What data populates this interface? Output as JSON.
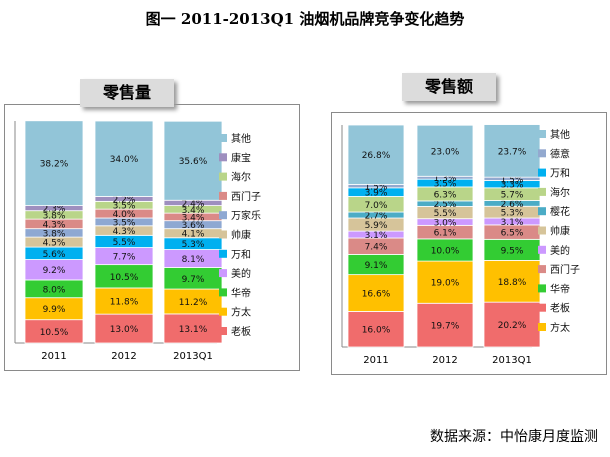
{
  "page_title": "图一  2011-2013Q1 油烟机品牌竞争变化趋势",
  "source": "数据来源：中怡康月度监测",
  "colors": {
    "其他": "#92C5D8",
    "康宝": "#9E8FBF",
    "海尔": "#B9D589",
    "西门子": "#DA8A87",
    "万家乐": "#8EA8D2",
    "帅康": "#D6C49A",
    "万和": "#00B0F0",
    "美的": "#CC99FF",
    "华帝": "#33CC33",
    "方太": "#FFC000",
    "老板": "#F06C6C",
    "德意": "#93A9CF",
    "樱花": "#4BACC6"
  },
  "chart_data": [
    {
      "type": "bar",
      "stacked": true,
      "title": "零售量",
      "categories": [
        "2011",
        "2012",
        "2013Q1"
      ],
      "ylim": [
        0,
        100
      ],
      "series": [
        {
          "name": "老板",
          "values": [
            10.5,
            13.0,
            13.1
          ],
          "labels": [
            "10.5%",
            "13.0%",
            "13.1%"
          ]
        },
        {
          "name": "方太",
          "values": [
            9.9,
            11.8,
            11.2
          ],
          "labels": [
            "9.9%",
            "11.8%",
            "11.2%"
          ]
        },
        {
          "name": "华帝",
          "values": [
            8.0,
            10.5,
            9.7
          ],
          "labels": [
            "8.0%",
            "10.5%",
            "9.7%"
          ]
        },
        {
          "name": "美的",
          "values": [
            9.2,
            7.7,
            8.1
          ],
          "labels": [
            "9.2%",
            "7.7%",
            "8.1%"
          ]
        },
        {
          "name": "万和",
          "values": [
            5.6,
            5.5,
            5.3
          ],
          "labels": [
            "5.6%",
            "5.5%",
            "5.3%"
          ]
        },
        {
          "name": "帅康",
          "values": [
            4.5,
            4.3,
            4.1
          ],
          "labels": [
            "4.5%",
            "4.3%",
            "4.1%"
          ]
        },
        {
          "name": "万家乐",
          "values": [
            3.8,
            3.5,
            3.6
          ],
          "labels": [
            "3.8%",
            "3.5%",
            "3.6%"
          ]
        },
        {
          "name": "西门子",
          "values": [
            4.3,
            4.0,
            3.4
          ],
          "labels": [
            "4.3%",
            "4.0%",
            "3.4%"
          ]
        },
        {
          "name": "海尔",
          "values": [
            3.8,
            3.5,
            3.4
          ],
          "labels": [
            "3.8%",
            "3.5%",
            "3.4%"
          ]
        },
        {
          "name": "康宝",
          "values": [
            2.3,
            2.2,
            2.4
          ],
          "labels": [
            "2.3%",
            "2.2%",
            "2.4%"
          ]
        },
        {
          "name": "其他",
          "values": [
            38.2,
            34.0,
            35.6
          ],
          "labels": [
            "38.2%",
            "34.0%",
            "35.6%"
          ]
        }
      ],
      "legend": [
        "其他",
        "康宝",
        "海尔",
        "西门子",
        "万家乐",
        "帅康",
        "万和",
        "美的",
        "华帝",
        "方太",
        "老板"
      ],
      "legend_position": "right"
    },
    {
      "type": "bar",
      "stacked": true,
      "title": "零售额",
      "categories": [
        "2011",
        "2012",
        "2013Q1"
      ],
      "ylim": [
        0,
        100
      ],
      "series": [
        {
          "name": "老板",
          "values": [
            16.0,
            19.7,
            20.2
          ],
          "labels": [
            "16.0%",
            "19.7%",
            "20.2%"
          ]
        },
        {
          "name": "方太",
          "values": [
            16.6,
            19.0,
            18.8
          ],
          "labels": [
            "16.6%",
            "19.0%",
            "18.8%"
          ]
        },
        {
          "name": "华帝",
          "values": [
            9.1,
            10.0,
            9.5
          ],
          "labels": [
            "9.1%",
            "10.0%",
            "9.5%"
          ]
        },
        {
          "name": "西门子",
          "values": [
            7.4,
            6.1,
            6.5
          ],
          "labels": [
            "7.4%",
            "6.1%",
            "6.5%"
          ]
        },
        {
          "name": "美的",
          "values": [
            3.1,
            3.0,
            3.1
          ],
          "labels": [
            "3.1%",
            "3.0%",
            "3.1%"
          ]
        },
        {
          "name": "帅康",
          "values": [
            5.9,
            5.5,
            5.3
          ],
          "labels": [
            "5.9%",
            "5.5%",
            "5.3%"
          ]
        },
        {
          "name": "樱花",
          "values": [
            2.7,
            2.5,
            2.6
          ],
          "labels": [
            "2.7%",
            "2.5%",
            "2.6%"
          ]
        },
        {
          "name": "海尔",
          "values": [
            7.0,
            6.3,
            5.7
          ],
          "labels": [
            "7.0%",
            "6.3%",
            "5.7%"
          ]
        },
        {
          "name": "万和",
          "values": [
            3.9,
            3.5,
            3.3
          ],
          "labels": [
            "3.9%",
            "3.5%",
            "3.3%"
          ]
        },
        {
          "name": "德意",
          "values": [
            1.5,
            1.3,
            1.5
          ],
          "labels": [
            "1.5%",
            "1.3%",
            "1.5%"
          ]
        },
        {
          "name": "其他",
          "values": [
            26.8,
            23.0,
            23.7
          ],
          "labels": [
            "26.8%",
            "23.0%",
            "23.7%"
          ]
        }
      ],
      "legend": [
        "其他",
        "德意",
        "万和",
        "海尔",
        "樱花",
        "帅康",
        "美的",
        "西门子",
        "华帝",
        "老板",
        "方太"
      ],
      "legend_position": "right"
    }
  ]
}
